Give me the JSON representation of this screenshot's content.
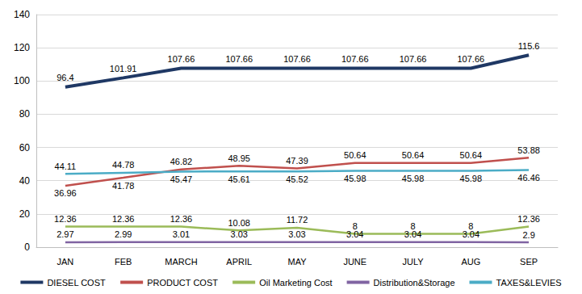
{
  "chart_data": {
    "type": "line",
    "categories": [
      "JAN",
      "FEB",
      "MARCH",
      "APRIL",
      "MAY",
      "JUNE",
      "JULY",
      "AUG",
      "SEP"
    ],
    "series": [
      {
        "name": "DIESEL COST",
        "color": "#1f3864",
        "line_style": "thick",
        "values": [
          96.4,
          101.91,
          107.66,
          107.66,
          107.66,
          107.66,
          107.66,
          107.66,
          115.6
        ]
      },
      {
        "name": "PRODUCT COST",
        "color": "#c0504d",
        "line_style": "solid",
        "values": [
          36.96,
          41.78,
          46.82,
          48.95,
          47.39,
          50.64,
          50.64,
          50.64,
          53.88
        ]
      },
      {
        "name": "Oil Marketing Cost",
        "color": "#9bbb59",
        "line_style": "solid",
        "values": [
          12.36,
          12.36,
          12.36,
          10.08,
          11.72,
          8,
          8,
          8,
          12.36
        ]
      },
      {
        "name": "Distribution&Storage",
        "color": "#8064a2",
        "line_style": "solid",
        "values": [
          2.97,
          2.99,
          3.01,
          3.03,
          3.03,
          3.04,
          3.04,
          3.04,
          2.9
        ]
      },
      {
        "name": "TAXES&LEVIES",
        "color": "#4bacc6",
        "line_style": "solid",
        "values": [
          44.11,
          44.78,
          45.47,
          45.61,
          45.52,
          45.98,
          45.98,
          45.98,
          46.46
        ]
      }
    ],
    "ylim": [
      0,
      140
    ],
    "yticks": [
      0,
      20,
      40,
      60,
      80,
      100,
      120,
      140
    ],
    "grid": true,
    "legend": "bottom",
    "data_labels": true
  }
}
